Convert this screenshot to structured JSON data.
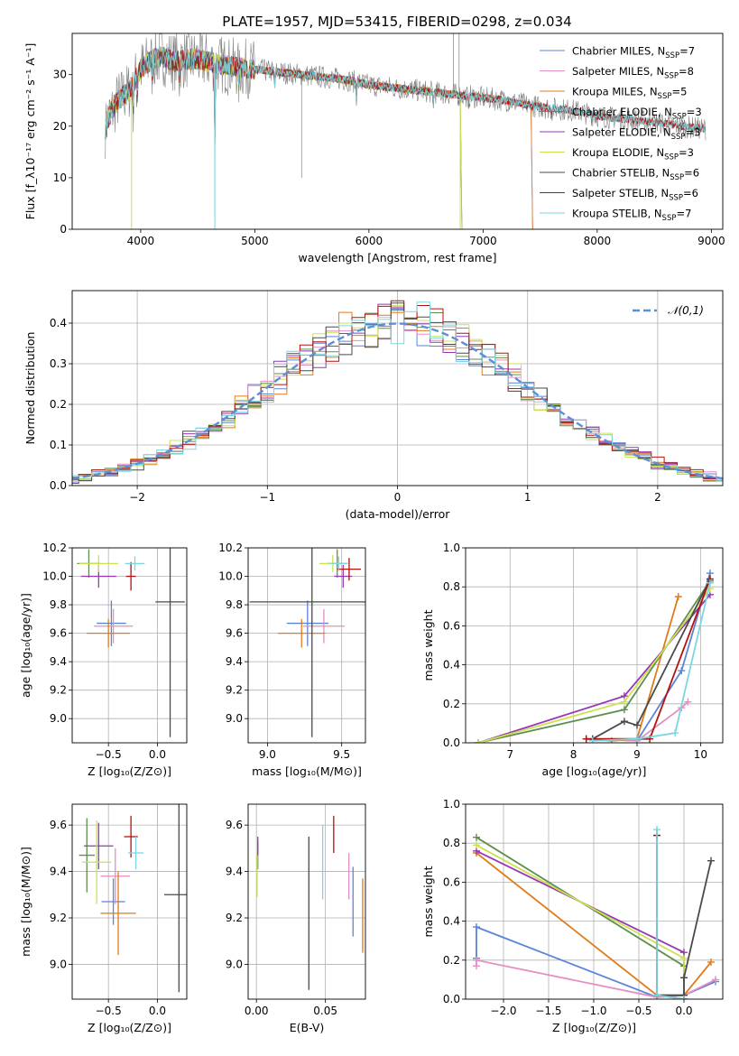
{
  "figure_title": "PLATE=1957, MJD=53415, FIBERID=0298, z=0.034",
  "colors": {
    "Chabrier MILES": "#5b84d6",
    "Salpeter MILES": "#e58ec3",
    "Kroupa MILES": "#e07b1a",
    "Chabrier ELODIE": "#5f8f4e",
    "Salpeter ELODIE": "#9a35b8",
    "Kroupa ELODIE": "#c9e34e",
    "Chabrier STELIB": "#4a4a4a",
    "Salpeter STELIB": "#b4120e",
    "Kroupa STELIB": "#7ad6e0",
    "gauss": "#5b8fd6"
  },
  "chart_data": [
    {
      "id": "spectrum",
      "type": "line",
      "xlabel": "wavelength [Angstrom, rest frame]",
      "ylabel": "Flux [f_λ10⁻¹⁷ erg cm⁻² s⁻¹ A⁻¹]",
      "xlim": [
        3400,
        9100
      ],
      "ylim": [
        0,
        38
      ],
      "xticks": [
        4000,
        5000,
        6000,
        7000,
        8000,
        9000
      ],
      "yticks": [
        0,
        10,
        20,
        30
      ],
      "grid": false,
      "legend_position": "top-right",
      "data_continuum": {
        "x": [
          3700,
          3800,
          3900,
          4000,
          4100,
          4200,
          4300,
          4400,
          4500,
          4600,
          4800,
          5000,
          5200,
          5400,
          5600,
          5800,
          6000,
          6200,
          6400,
          6600,
          6800,
          7000,
          7200,
          7400,
          7600,
          7800,
          8000,
          8200,
          8400,
          8600,
          8800,
          8950
        ],
        "y": [
          21,
          25,
          27,
          31,
          33,
          33.5,
          32.5,
          33,
          33,
          32.5,
          31.5,
          31,
          30.5,
          30,
          29.5,
          29,
          28,
          27.5,
          27,
          26.5,
          26,
          25.5,
          25,
          24,
          23.5,
          23,
          22,
          21.5,
          21,
          20.5,
          19.8,
          19.5
        ]
      },
      "series": [
        {
          "name": "Chabrier MILES",
          "nssp": "7",
          "x_end": 7420
        },
        {
          "name": "Salpeter MILES",
          "nssp": "8",
          "x_end": 7420
        },
        {
          "name": "Kroupa MILES",
          "nssp": "5",
          "x_end": 7420
        },
        {
          "name": "Chabrier ELODIE",
          "nssp": "3",
          "x_end": 6800
        },
        {
          "name": "Salpeter ELODIE",
          "nssp": "3",
          "x_end": 6800
        },
        {
          "name": "Kroupa ELODIE",
          "nssp": "3",
          "x_end": 6800
        },
        {
          "name": "Chabrier STELIB",
          "nssp": "6",
          "x_end": 8950
        },
        {
          "name": "Salpeter STELIB",
          "nssp": "6",
          "x_end": 8950
        },
        {
          "name": "Kroupa STELIB",
          "nssp": "7",
          "x_end": 8950
        }
      ]
    },
    {
      "id": "residuals",
      "type": "line",
      "xlabel": "(data-model)/error",
      "ylabel": "Normed distribution",
      "xlim": [
        -2.5,
        2.5
      ],
      "ylim": [
        0,
        0.48
      ],
      "xticks": [
        -2,
        -1,
        0,
        1,
        2
      ],
      "yticks": [
        0.0,
        0.1,
        0.2,
        0.3,
        0.4
      ],
      "grid": true,
      "legend_position": "top-right",
      "legend": [
        "𝒩(0,1)"
      ]
    },
    {
      "id": "age_vs_Z",
      "type": "scatter",
      "xlabel": "Z [log₁₀(Z/Z⊙)]",
      "ylabel": "age  [log₁₀(age/yr)]",
      "xlim": [
        -0.87,
        0.3
      ],
      "ylim": [
        8.83,
        10.2
      ],
      "xticks": [
        -0.5,
        0.0
      ],
      "yticks": [
        9.0,
        9.2,
        9.4,
        9.6,
        9.8,
        10.0,
        10.2
      ],
      "points": [
        {
          "series": "Chabrier MILES",
          "x": -0.47,
          "y": 9.67,
          "xerr": 0.15,
          "yerr": 0.16
        },
        {
          "series": "Salpeter MILES",
          "x": -0.45,
          "y": 9.65,
          "xerr": 0.2,
          "yerr": 0.12
        },
        {
          "series": "Kroupa MILES",
          "x": -0.5,
          "y": 9.6,
          "xerr": 0.22,
          "yerr": 0.1
        },
        {
          "series": "Chabrier ELODIE",
          "x": -0.7,
          "y": 10.09,
          "xerr": 0.12,
          "yerr": 0.1
        },
        {
          "series": "Salpeter ELODIE",
          "x": -0.6,
          "y": 10.0,
          "xerr": 0.18,
          "yerr": 0.08
        },
        {
          "series": "Kroupa ELODIE",
          "x": -0.6,
          "y": 10.09,
          "xerr": 0.2,
          "yerr": 0.06
        },
        {
          "series": "Chabrier STELIB",
          "x": 0.13,
          "y": 9.82,
          "xerr": 0.15,
          "yerr": 0.95
        },
        {
          "series": "Salpeter STELIB",
          "x": -0.27,
          "y": 10.0,
          "xerr": 0.05,
          "yerr": 0.1
        },
        {
          "series": "Kroupa STELIB",
          "x": -0.23,
          "y": 10.09,
          "xerr": 0.1,
          "yerr": 0.05
        }
      ]
    },
    {
      "id": "age_vs_mass",
      "type": "scatter",
      "xlabel": "mass [log₁₀(M/M⊙)]",
      "ylabel": "",
      "xlim": [
        8.87,
        9.66
      ],
      "ylim": [
        8.83,
        10.2
      ],
      "xticks": [
        9.0,
        9.5
      ],
      "yticks": [
        9.0,
        9.2,
        9.4,
        9.6,
        9.8,
        10.0,
        10.2
      ],
      "points": [
        {
          "series": "Chabrier MILES",
          "x": 9.27,
          "y": 9.67,
          "xerr": 0.14,
          "yerr": 0.16
        },
        {
          "series": "Salpeter MILES",
          "x": 9.38,
          "y": 9.65,
          "xerr": 0.14,
          "yerr": 0.12
        },
        {
          "series": "Kroupa MILES",
          "x": 9.23,
          "y": 9.6,
          "xerr": 0.16,
          "yerr": 0.1
        },
        {
          "series": "Chabrier ELODIE",
          "x": 9.47,
          "y": 10.09,
          "xerr": 0.07,
          "yerr": 0.1
        },
        {
          "series": "Salpeter ELODIE",
          "x": 9.51,
          "y": 10.0,
          "xerr": 0.06,
          "yerr": 0.08
        },
        {
          "series": "Kroupa ELODIE",
          "x": 9.44,
          "y": 10.09,
          "xerr": 0.09,
          "yerr": 0.06
        },
        {
          "series": "Chabrier STELIB",
          "x": 9.3,
          "y": 9.82,
          "xerr": 0.42,
          "yerr": 0.95
        },
        {
          "series": "Salpeter STELIB",
          "x": 9.55,
          "y": 10.05,
          "xerr": 0.08,
          "yerr": 0.08
        },
        {
          "series": "Kroupa STELIB",
          "x": 9.48,
          "y": 10.09,
          "xerr": 0.06,
          "yerr": 0.05
        }
      ]
    },
    {
      "id": "weight_vs_age",
      "type": "line",
      "xlabel": "age  [log₁₀(age/yr)]",
      "ylabel": "mass weight",
      "xlim": [
        6.3,
        10.35
      ],
      "ylim": [
        0,
        1
      ],
      "xticks": [
        7,
        8,
        9,
        10
      ],
      "yticks": [
        0.0,
        0.2,
        0.4,
        0.6,
        0.8,
        1.0
      ],
      "series": [
        {
          "name": "Chabrier MILES",
          "x": [
            8.3,
            9.0,
            9.7,
            10.15
          ],
          "y": [
            0.02,
            0.01,
            0.37,
            0.87
          ]
        },
        {
          "name": "Salpeter MILES",
          "x": [
            8.3,
            9.0,
            9.7,
            9.8
          ],
          "y": [
            0.02,
            0.01,
            0.18,
            0.21
          ]
        },
        {
          "name": "Kroupa MILES",
          "x": [
            8.2,
            8.6,
            9.0,
            9.65
          ],
          "y": [
            0.02,
            0.01,
            0.02,
            0.75
          ]
        },
        {
          "name": "Chabrier ELODIE",
          "x": [
            6.5,
            8.8,
            10.15
          ],
          "y": [
            0.0,
            0.17,
            0.83
          ]
        },
        {
          "name": "Salpeter ELODIE",
          "x": [
            6.5,
            8.8,
            10.15
          ],
          "y": [
            0.0,
            0.24,
            0.76
          ]
        },
        {
          "name": "Kroupa ELODIE",
          "x": [
            6.5,
            8.8,
            10.15
          ],
          "y": [
            0.0,
            0.21,
            0.79
          ]
        },
        {
          "name": "Chabrier STELIB",
          "x": [
            8.3,
            8.8,
            9.0,
            10.15
          ],
          "y": [
            0.02,
            0.11,
            0.09,
            0.84
          ]
        },
        {
          "name": "Salpeter STELIB",
          "x": [
            8.2,
            9.2,
            10.15
          ],
          "y": [
            0.02,
            0.02,
            0.84
          ]
        },
        {
          "name": "Kroupa STELIB",
          "x": [
            8.3,
            9.0,
            9.6,
            10.15
          ],
          "y": [
            0.01,
            0.02,
            0.05,
            0.82
          ]
        }
      ]
    },
    {
      "id": "mass_vs_Z",
      "type": "scatter",
      "xlabel": "Z [log₁₀(Z/Z⊙)]",
      "ylabel": "mass [log₁₀(M/M⊙)]",
      "xlim": [
        -0.87,
        0.3
      ],
      "ylim": [
        8.85,
        9.69
      ],
      "xticks": [
        -0.5,
        0.0
      ],
      "yticks": [
        9.0,
        9.2,
        9.4,
        9.6
      ],
      "points": [
        {
          "series": "Chabrier MILES",
          "x": -0.45,
          "y": 9.27,
          "xerr": 0.12,
          "yerr": 0.1
        },
        {
          "series": "Salpeter MILES",
          "x": -0.43,
          "y": 9.38,
          "xerr": 0.15,
          "yerr": 0.12
        },
        {
          "series": "Kroupa MILES",
          "x": -0.4,
          "y": 9.22,
          "xerr": 0.18,
          "yerr": 0.18
        },
        {
          "series": "Chabrier ELODIE",
          "x": -0.72,
          "y": 9.47,
          "xerr": 0.08,
          "yerr": 0.16
        },
        {
          "series": "Salpeter ELODIE",
          "x": -0.6,
          "y": 9.51,
          "xerr": 0.15,
          "yerr": 0.1
        },
        {
          "series": "Kroupa ELODIE",
          "x": -0.62,
          "y": 9.44,
          "xerr": 0.15,
          "yerr": 0.18
        },
        {
          "series": "Chabrier STELIB",
          "x": 0.22,
          "y": 9.3,
          "xerr": 0.15,
          "yerr": 0.42
        },
        {
          "series": "Salpeter STELIB",
          "x": -0.27,
          "y": 9.55,
          "xerr": 0.07,
          "yerr": 0.09
        },
        {
          "series": "Kroupa STELIB",
          "x": -0.22,
          "y": 9.48,
          "xerr": 0.08,
          "yerr": 0.07
        }
      ]
    },
    {
      "id": "mass_vs_ebv",
      "type": "scatter",
      "xlabel": "E(B-V)",
      "ylabel": "",
      "xlim": [
        -0.006,
        0.079
      ],
      "ylim": [
        8.85,
        9.69
      ],
      "xticks": [
        0.0,
        0.05
      ],
      "yticks": [
        9.0,
        9.2,
        9.4,
        9.6
      ],
      "points": [
        {
          "series": "Chabrier MILES",
          "x": 0.07,
          "y": 9.27,
          "yerr": 0.15
        },
        {
          "series": "Salpeter MILES",
          "x": 0.067,
          "y": 9.38,
          "yerr": 0.1
        },
        {
          "series": "Kroupa MILES",
          "x": 0.077,
          "y": 9.21,
          "yerr": 0.16
        },
        {
          "series": "Chabrier ELODIE",
          "x": 0.001,
          "y": 9.47,
          "yerr": 0.06
        },
        {
          "series": "Salpeter ELODIE",
          "x": 0.001,
          "y": 9.51,
          "yerr": 0.04
        },
        {
          "series": "Kroupa ELODIE",
          "x": 0.0005,
          "y": 9.38,
          "yerr": 0.09
        },
        {
          "series": "Chabrier STELIB",
          "x": 0.038,
          "y": 9.22,
          "yerr": 0.33
        },
        {
          "series": "Salpeter STELIB",
          "x": 0.056,
          "y": 9.56,
          "yerr": 0.08
        },
        {
          "series": "Kroupa STELIB",
          "x": 0.048,
          "y": 9.44,
          "yerr": 0.16
        }
      ]
    },
    {
      "id": "weight_vs_Z",
      "type": "line",
      "xlabel": "Z [log₁₀(Z/Z⊙)]",
      "ylabel": "mass weight",
      "xlim": [
        -2.42,
        0.43
      ],
      "ylim": [
        0,
        1
      ],
      "xticks": [
        -2.0,
        -1.5,
        -1.0,
        -0.5,
        0.0
      ],
      "yticks": [
        0.0,
        0.2,
        0.4,
        0.6,
        0.8,
        1.0
      ],
      "series": [
        {
          "name": "Chabrier MILES",
          "x": [
            -2.3,
            -2.3,
            -0.3,
            0.0,
            0.35
          ],
          "y": [
            0.21,
            0.37,
            0.01,
            0.02,
            0.09
          ]
        },
        {
          "name": "Salpeter MILES",
          "x": [
            -2.3,
            -2.3,
            -0.3,
            0.0,
            0.35
          ],
          "y": [
            0.17,
            0.2,
            0.01,
            0.02,
            0.1
          ]
        },
        {
          "name": "Kroupa MILES",
          "x": [
            -2.3,
            -0.3,
            0.0,
            0.3
          ],
          "y": [
            0.75,
            0.02,
            0.02,
            0.19
          ]
        },
        {
          "name": "Chabrier ELODIE",
          "x": [
            -2.3,
            0.0,
            0.0
          ],
          "y": [
            0.83,
            0.17,
            0.0
          ]
        },
        {
          "name": "Salpeter ELODIE",
          "x": [
            -2.3,
            0.0,
            0.0
          ],
          "y": [
            0.76,
            0.24,
            0.0
          ]
        },
        {
          "name": "Kroupa ELODIE",
          "x": [
            -2.3,
            0.0,
            0.0
          ],
          "y": [
            0.79,
            0.21,
            0.0
          ]
        },
        {
          "name": "Chabrier STELIB",
          "x": [
            -0.3,
            -0.3,
            0.0,
            0.0,
            0.3
          ],
          "y": [
            0.84,
            0.02,
            0.02,
            0.11,
            0.71
          ]
        },
        {
          "name": "Salpeter STELIB",
          "x": [
            -0.3,
            -0.3,
            0.0
          ],
          "y": [
            0.84,
            0.02,
            0.0
          ]
        },
        {
          "name": "Kroupa STELIB",
          "x": [
            -0.3,
            -0.3,
            0.0
          ],
          "y": [
            0.87,
            0.02,
            0.0
          ]
        }
      ]
    }
  ]
}
